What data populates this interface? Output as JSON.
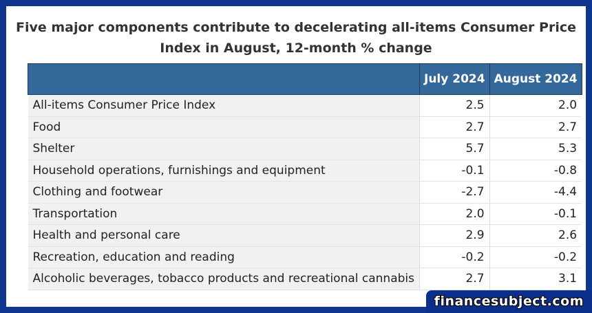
{
  "title": {
    "line1": "Five major components contribute to decelerating all-items Consumer Price",
    "line2": "Index in August, 12-month % change"
  },
  "table": {
    "headers": [
      "",
      "July 2024",
      "August 2024"
    ],
    "rows": [
      {
        "label": "All-items Consumer Price Index",
        "july": "2.5",
        "august": "2.0"
      },
      {
        "label": "Food",
        "july": "2.7",
        "august": "2.7"
      },
      {
        "label": "Shelter",
        "july": "5.7",
        "august": "5.3"
      },
      {
        "label": "Household operations, furnishings and equipment",
        "july": "-0.1",
        "august": "-0.8"
      },
      {
        "label": "Clothing and footwear",
        "july": "-2.7",
        "august": "-4.4"
      },
      {
        "label": "Transportation",
        "july": "2.0",
        "august": "-0.1"
      },
      {
        "label": "Health and personal care",
        "july": "2.9",
        "august": "2.6"
      },
      {
        "label": "Recreation, education and reading",
        "july": "-0.2",
        "august": "-0.2"
      },
      {
        "label": "Alcoholic beverages, tobacco products and recreational cannabis",
        "july": "2.7",
        "august": "3.1"
      }
    ]
  },
  "watermark": "financesubject.com",
  "colors": {
    "frame": "#10358f",
    "header_bg": "#34679a",
    "label_bg": "#f1f1f1"
  }
}
